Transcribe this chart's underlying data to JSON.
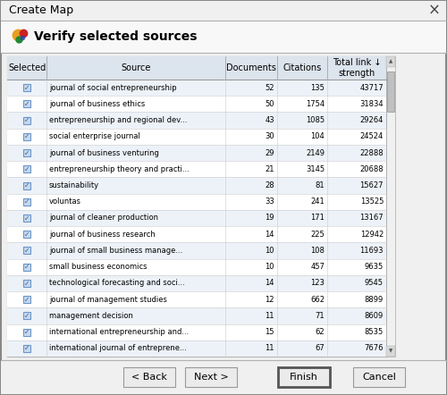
{
  "title": "Create Map",
  "subtitle": "Verify selected sources",
  "rows": [
    [
      "journal of social entrepreneurship",
      52,
      135,
      43717
    ],
    [
      "journal of business ethics",
      50,
      1754,
      31834
    ],
    [
      "entrepreneurship and regional dev...",
      43,
      1085,
      29264
    ],
    [
      "social enterprise journal",
      30,
      104,
      24524
    ],
    [
      "journal of business venturing",
      29,
      2149,
      22888
    ],
    [
      "entrepreneurship theory and practi...",
      21,
      3145,
      20688
    ],
    [
      "sustainability",
      28,
      81,
      15627
    ],
    [
      "voluntas",
      33,
      241,
      13525
    ],
    [
      "journal of cleaner production",
      19,
      171,
      13167
    ],
    [
      "journal of business research",
      14,
      225,
      12942
    ],
    [
      "journal of small business manage...",
      10,
      108,
      11693
    ],
    [
      "small business economics",
      10,
      457,
      9635
    ],
    [
      "technological forecasting and soci...",
      14,
      123,
      9545
    ],
    [
      "journal of management studies",
      12,
      662,
      8899
    ],
    [
      "management decision",
      11,
      71,
      8609
    ],
    [
      "international entrepreneurship and...",
      15,
      62,
      8535
    ],
    [
      "international journal of entreprene...",
      11,
      67,
      7676
    ]
  ],
  "bg_color": "#e8e8e8",
  "dialog_bg": "#f0f0f0",
  "header_area_bg": "#f8f8f8",
  "table_bg": "#ffffff",
  "header_bg": "#dce4ed",
  "row_even_bg": "#edf2f8",
  "row_odd_bg": "#ffffff",
  "border_color": "#999999",
  "text_color": "#000000",
  "button_labels": [
    "< Back",
    "Next >",
    "Finish",
    "Cancel"
  ],
  "check_color": "#3a6598",
  "check_bg": "#c8d8ec",
  "check_border": "#6a96c8"
}
